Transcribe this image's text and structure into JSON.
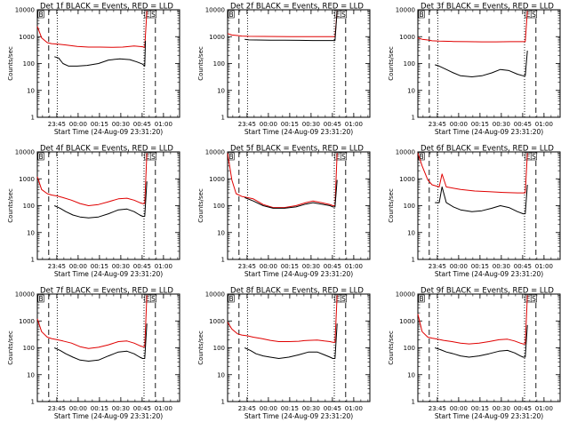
{
  "figure": {
    "ylabel": "Counts/sec",
    "xlabel": "Start Time (24-Aug-09 23:31:20)",
    "event_color": "#000000",
    "lld_color": "#e00000",
    "background": "#ffffff",
    "ytick_labels": [
      "1",
      "10",
      "100",
      "1000",
      "10000"
    ],
    "xtick_labels": [
      "23:45",
      "00:00",
      "00:15",
      "00:30",
      "00:45",
      "01:00"
    ]
  },
  "chart_data": [
    {
      "type": "line",
      "title": "Det 1f BLACK = Events, RED = LLD",
      "marker_labels": [
        "B",
        "E",
        "S"
      ],
      "xlabel": "Start Time (24-Aug-09 23:31:20)",
      "ylabel": "Counts/sec",
      "xlim_minutes": [
        0,
        100
      ],
      "ylim": [
        1,
        10000
      ],
      "yscale": "log",
      "xticks_minutes": [
        13.67,
        28.67,
        43.67,
        58.67,
        73.67,
        88.67
      ],
      "dashed_lines_minutes": [
        8,
        83
      ],
      "dotted_lines_minutes": [
        14,
        75
      ],
      "series": [
        {
          "name": "Events",
          "color": "#000000",
          "x": [
            10,
            12,
            15,
            18,
            22,
            28,
            35,
            43,
            50,
            58,
            65,
            70,
            74,
            75.5,
            76
          ],
          "y": [
            null,
            180,
            160,
            100,
            80,
            80,
            85,
            100,
            135,
            150,
            140,
            115,
            95,
            80,
            700
          ]
        },
        {
          "name": "LLD",
          "color": "#e00000",
          "x": [
            0,
            3,
            7,
            10,
            15,
            20,
            28,
            36,
            44,
            52,
            60,
            68,
            74,
            75.5,
            77
          ],
          "y": [
            2400,
            900,
            600,
            550,
            520,
            490,
            430,
            410,
            410,
            400,
            410,
            450,
            420,
            400,
            9000
          ]
        }
      ]
    },
    {
      "type": "line",
      "title": "Det 2f BLACK = Events, RED = LLD",
      "marker_labels": [
        "B",
        "E",
        "S"
      ],
      "xlabel": "Start Time (24-Aug-09 23:31:20)",
      "ylabel": "Counts/sec",
      "xlim_minutes": [
        0,
        100
      ],
      "ylim": [
        1,
        10000
      ],
      "yscale": "log",
      "xticks_minutes": [
        13.67,
        28.67,
        43.67,
        58.67,
        73.67,
        88.67
      ],
      "dashed_lines_minutes": [
        8,
        83
      ],
      "dotted_lines_minutes": [
        14,
        75
      ],
      "series": [
        {
          "name": "Events",
          "color": "#000000",
          "x": [
            10,
            12,
            15,
            20,
            30,
            40,
            50,
            60,
            70,
            74,
            75.5,
            77
          ],
          "y": [
            null,
            800,
            760,
            750,
            740,
            740,
            730,
            720,
            720,
            720,
            720,
            9000
          ]
        },
        {
          "name": "LLD",
          "color": "#e00000",
          "x": [
            0,
            3,
            7,
            10,
            15,
            25,
            35,
            45,
            55,
            65,
            74,
            75.5,
            77
          ],
          "y": [
            1300,
            1150,
            1100,
            1050,
            1030,
            1020,
            1010,
            1000,
            1000,
            1000,
            1000,
            1000,
            9000
          ]
        }
      ]
    },
    {
      "type": "line",
      "title": "Det 3f BLACK = Events, RED = LLD",
      "marker_labels": [
        "B",
        "E",
        "S"
      ],
      "xlabel": "Start Time (24-Aug-09 23:31:20)",
      "ylabel": "Counts/sec",
      "xlim_minutes": [
        0,
        100
      ],
      "ylim": [
        1,
        10000
      ],
      "yscale": "log",
      "xticks_minutes": [
        13.67,
        28.67,
        43.67,
        58.67,
        73.67,
        88.67
      ],
      "dashed_lines_minutes": [
        8,
        83
      ],
      "dotted_lines_minutes": [
        14,
        75
      ],
      "series": [
        {
          "name": "Events",
          "color": "#000000",
          "x": [
            10,
            12,
            15,
            20,
            25,
            30,
            38,
            45,
            52,
            58,
            64,
            70,
            74,
            75.5,
            77
          ],
          "y": [
            null,
            90,
            80,
            60,
            45,
            35,
            32,
            35,
            45,
            60,
            55,
            40,
            35,
            35,
            300
          ]
        },
        {
          "name": "LLD",
          "color": "#e00000",
          "x": [
            0,
            3,
            7,
            10,
            15,
            25,
            35,
            45,
            55,
            65,
            74,
            75.5,
            77
          ],
          "y": [
            900,
            800,
            750,
            700,
            680,
            660,
            650,
            640,
            640,
            650,
            650,
            650,
            9000
          ]
        }
      ]
    },
    {
      "type": "line",
      "title": "Det 4f BLACK = Events, RED = LLD",
      "marker_labels": [
        "B",
        "E",
        "S"
      ],
      "xlabel": "Start Time (24-Aug-09 23:31:20)",
      "ylabel": "Counts/sec",
      "xlim_minutes": [
        0,
        100
      ],
      "ylim": [
        1,
        10000
      ],
      "yscale": "log",
      "xticks_minutes": [
        13.67,
        28.67,
        43.67,
        58.67,
        73.67,
        88.67
      ],
      "dashed_lines_minutes": [
        8,
        83
      ],
      "dotted_lines_minutes": [
        14,
        75
      ],
      "series": [
        {
          "name": "Events",
          "color": "#000000",
          "x": [
            10,
            12,
            16,
            20,
            25,
            30,
            36,
            43,
            50,
            57,
            63,
            68,
            72,
            74,
            75.5,
            77
          ],
          "y": [
            null,
            100,
            80,
            60,
            45,
            38,
            35,
            38,
            50,
            70,
            75,
            60,
            45,
            40,
            40,
            800
          ]
        },
        {
          "name": "LLD",
          "color": "#e00000",
          "x": [
            0,
            3,
            7,
            10,
            14,
            18,
            24,
            30,
            36,
            43,
            50,
            57,
            63,
            68,
            72,
            74,
            75.5,
            77
          ],
          "y": [
            1200,
            400,
            280,
            250,
            230,
            200,
            160,
            120,
            100,
            110,
            140,
            180,
            190,
            160,
            130,
            120,
            120,
            9000
          ]
        }
      ]
    },
    {
      "type": "line",
      "title": "Det 5f BLACK = Events, RED = LLD",
      "marker_labels": [
        "B",
        "E",
        "S"
      ],
      "xlabel": "Start Time (24-Aug-09 23:31:20)",
      "ylabel": "Counts/sec",
      "xlim_minutes": [
        0,
        100
      ],
      "ylim": [
        1,
        10000
      ],
      "yscale": "log",
      "xticks_minutes": [
        13.67,
        28.67,
        43.67,
        58.67,
        73.67,
        88.67
      ],
      "dashed_lines_minutes": [
        8,
        83
      ],
      "dotted_lines_minutes": [
        14,
        75
      ],
      "series": [
        {
          "name": "Events",
          "color": "#000000",
          "x": [
            10,
            12,
            18,
            25,
            32,
            40,
            48,
            55,
            60,
            66,
            72,
            74,
            75.5,
            77
          ],
          "y": [
            null,
            200,
            150,
            100,
            80,
            80,
            90,
            115,
            130,
            115,
            100,
            90,
            90,
            900
          ]
        },
        {
          "name": "LLD",
          "color": "#e00000",
          "x": [
            0,
            3,
            6,
            10,
            18,
            25,
            32,
            40,
            48,
            55,
            60,
            66,
            72,
            74,
            75.5,
            77
          ],
          "y": [
            9000,
            900,
            280,
            220,
            180,
            110,
            85,
            85,
            100,
            130,
            150,
            130,
            110,
            100,
            100,
            9000
          ]
        }
      ]
    },
    {
      "type": "line",
      "title": "Det 6f BLACK = Events, RED = LLD",
      "marker_labels": [
        "B",
        "E",
        "S"
      ],
      "xlabel": "Start Time (24-Aug-09 23:31:20)",
      "ylabel": "Counts/sec",
      "xlim_minutes": [
        0,
        100
      ],
      "ylim": [
        1,
        10000
      ],
      "yscale": "log",
      "xticks_minutes": [
        13.67,
        28.67,
        43.67,
        58.67,
        73.67,
        88.67
      ],
      "dashed_lines_minutes": [
        8,
        83
      ],
      "dotted_lines_minutes": [
        14,
        75
      ],
      "series": [
        {
          "name": "Events",
          "color": "#000000",
          "x": [
            10,
            12,
            15,
            17,
            20,
            25,
            30,
            38,
            45,
            52,
            58,
            64,
            70,
            74,
            75.5,
            77
          ],
          "y": [
            null,
            130,
            130,
            500,
            130,
            90,
            70,
            60,
            65,
            80,
            100,
            85,
            60,
            50,
            50,
            600
          ]
        },
        {
          "name": "LLD",
          "color": "#e00000",
          "x": [
            0,
            3,
            7,
            10,
            15,
            17,
            20,
            30,
            40,
            50,
            60,
            70,
            74,
            75.5,
            77
          ],
          "y": [
            9000,
            3000,
            900,
            600,
            500,
            1500,
            500,
            400,
            350,
            330,
            310,
            300,
            300,
            300,
            9000
          ]
        }
      ]
    },
    {
      "type": "line",
      "title": "Det 7f BLACK = Events, RED = LLD",
      "marker_labels": [
        "B",
        "E",
        "S"
      ],
      "xlabel": "Start Time (24-Aug-09 23:31:20)",
      "ylabel": "Counts/sec",
      "xlim_minutes": [
        0,
        100
      ],
      "ylim": [
        1,
        10000
      ],
      "yscale": "log",
      "xticks_minutes": [
        13.67,
        28.67,
        43.67,
        58.67,
        73.67,
        88.67
      ],
      "dashed_lines_minutes": [
        8,
        83
      ],
      "dotted_lines_minutes": [
        14,
        75
      ],
      "series": [
        {
          "name": "Events",
          "color": "#000000",
          "x": [
            10,
            12,
            16,
            20,
            25,
            30,
            36,
            43,
            50,
            57,
            63,
            68,
            72,
            74,
            75.5,
            77
          ],
          "y": [
            null,
            100,
            80,
            60,
            45,
            35,
            32,
            35,
            50,
            70,
            75,
            60,
            45,
            40,
            40,
            800
          ]
        },
        {
          "name": "LLD",
          "color": "#e00000",
          "x": [
            0,
            3,
            7,
            10,
            14,
            18,
            24,
            30,
            36,
            43,
            50,
            57,
            63,
            68,
            72,
            74,
            75.5,
            77
          ],
          "y": [
            1200,
            400,
            250,
            220,
            200,
            180,
            150,
            110,
            95,
            105,
            130,
            170,
            180,
            150,
            120,
            110,
            110,
            9000
          ]
        }
      ]
    },
    {
      "type": "line",
      "title": "Det 8f BLACK = Events, RED = LLD",
      "marker_labels": [
        "B",
        "E",
        "S"
      ],
      "xlabel": "Start Time (24-Aug-09 23:31:20)",
      "ylabel": "Counts/sec",
      "xlim_minutes": [
        0,
        100
      ],
      "ylim": [
        1,
        10000
      ],
      "yscale": "log",
      "xticks_minutes": [
        13.67,
        28.67,
        43.67,
        58.67,
        73.67,
        88.67
      ],
      "dashed_lines_minutes": [
        8,
        83
      ],
      "dotted_lines_minutes": [
        14,
        75
      ],
      "series": [
        {
          "name": "Events",
          "color": "#000000",
          "x": [
            10,
            12,
            16,
            20,
            25,
            30,
            36,
            43,
            50,
            57,
            63,
            68,
            72,
            74,
            75.5,
            77
          ],
          "y": [
            null,
            100,
            80,
            60,
            50,
            45,
            40,
            45,
            55,
            70,
            70,
            55,
            45,
            40,
            40,
            800
          ]
        },
        {
          "name": "LLD",
          "color": "#e00000",
          "x": [
            0,
            3,
            7,
            10,
            14,
            18,
            24,
            30,
            36,
            43,
            50,
            52,
            54,
            57,
            63,
            68,
            72,
            74,
            75.5,
            77
          ],
          "y": [
            900,
            500,
            330,
            300,
            280,
            250,
            220,
            190,
            170,
            170,
            175,
            180,
            185,
            190,
            195,
            180,
            170,
            160,
            160,
            9000
          ]
        }
      ]
    },
    {
      "type": "line",
      "title": "Det 9f BLACK = Events, RED = LLD",
      "marker_labels": [
        "B",
        "E",
        "S"
      ],
      "xlabel": "Start Time (24-Aug-09 23:31:20)",
      "ylabel": "Counts/sec",
      "xlim_minutes": [
        0,
        100
      ],
      "ylim": [
        1,
        10000
      ],
      "yscale": "log",
      "xticks_minutes": [
        13.67,
        28.67,
        43.67,
        58.67,
        73.67,
        88.67
      ],
      "dashed_lines_minutes": [
        8,
        83
      ],
      "dotted_lines_minutes": [
        14,
        75
      ],
      "series": [
        {
          "name": "Events",
          "color": "#000000",
          "x": [
            10,
            12,
            16,
            20,
            25,
            30,
            36,
            43,
            50,
            57,
            63,
            68,
            72,
            74,
            75.5,
            77
          ],
          "y": [
            null,
            100,
            85,
            70,
            60,
            50,
            45,
            50,
            60,
            75,
            80,
            65,
            50,
            45,
            45,
            700
          ]
        },
        {
          "name": "LLD",
          "color": "#e00000",
          "x": [
            0,
            3,
            7,
            10,
            14,
            18,
            24,
            30,
            36,
            43,
            50,
            57,
            63,
            68,
            72,
            74,
            75.5,
            77
          ],
          "y": [
            1800,
            400,
            250,
            230,
            210,
            190,
            170,
            150,
            140,
            150,
            170,
            200,
            210,
            180,
            150,
            140,
            140,
            9000
          ]
        }
      ]
    }
  ]
}
